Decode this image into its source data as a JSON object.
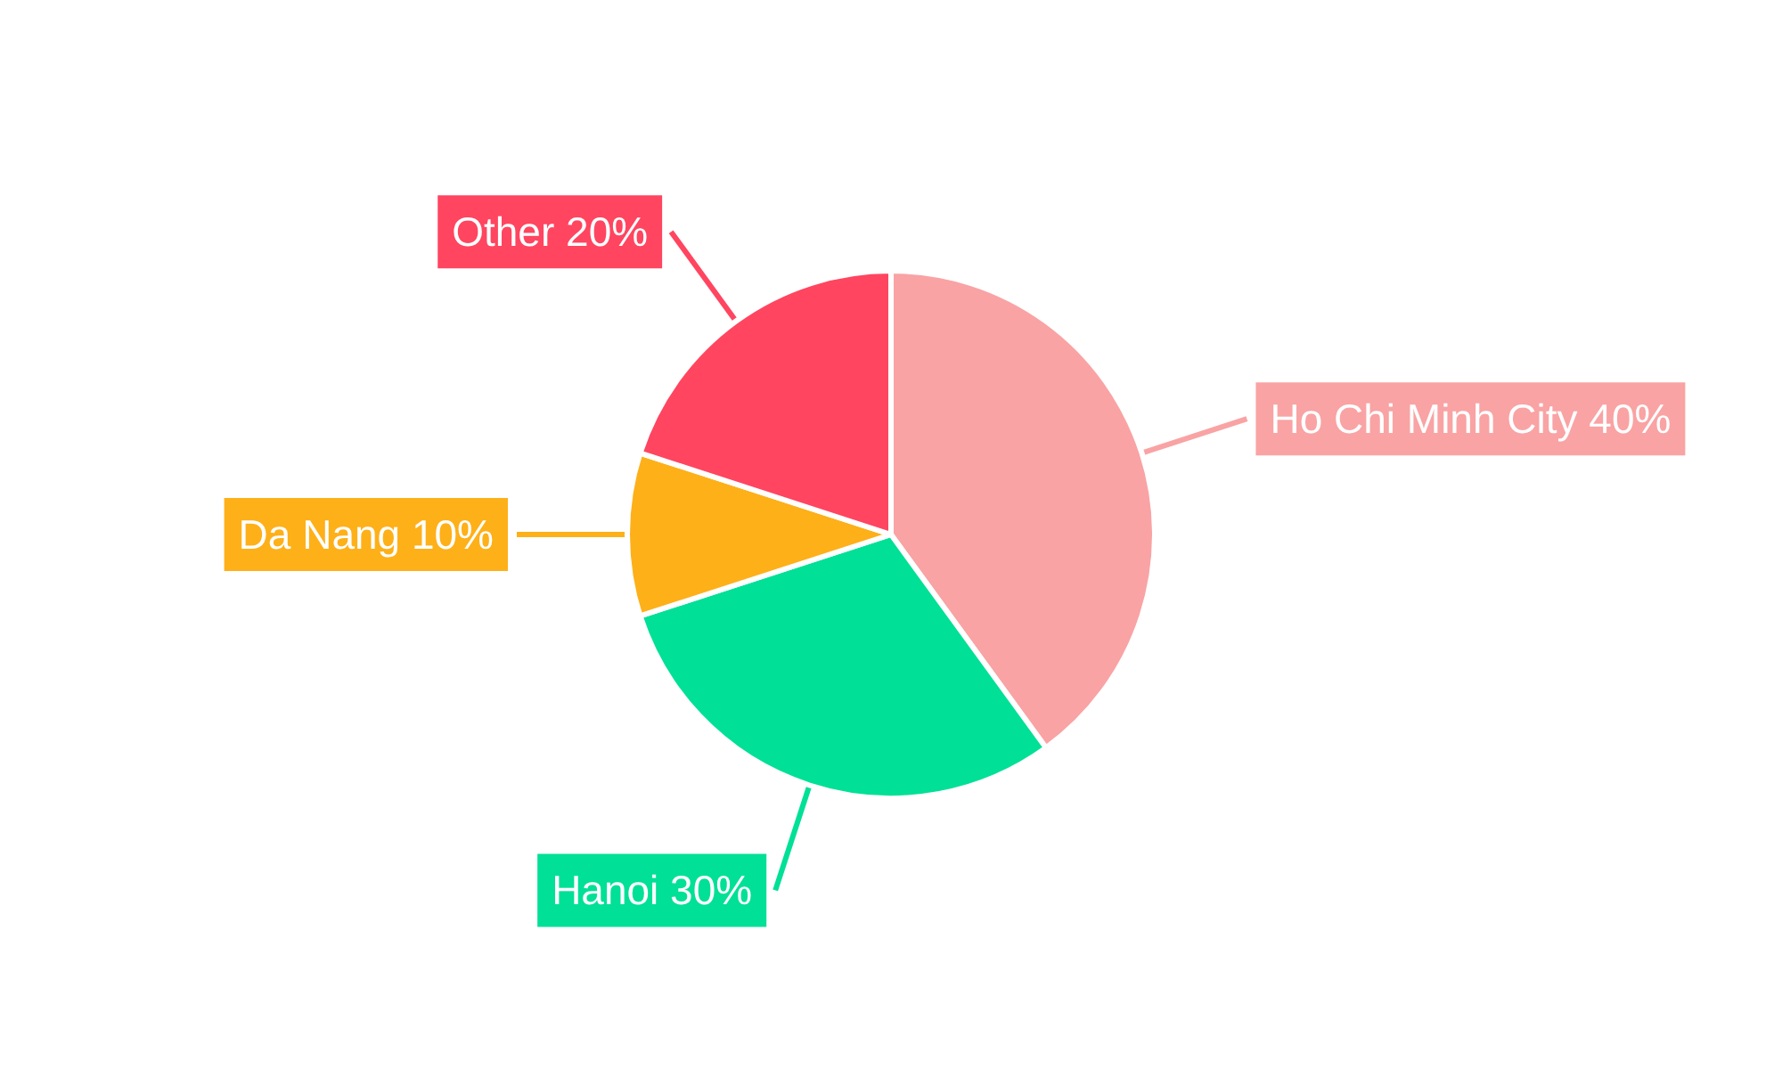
{
  "chart_data": {
    "type": "pie",
    "categories": [
      "Ho Chi Minh City",
      "Hanoi",
      "Da Nang",
      "Other"
    ],
    "values": [
      40,
      30,
      10,
      20
    ],
    "colors": [
      "#f9a3a4",
      "#00e096",
      "#feb019",
      "#ff4560"
    ],
    "value_labels": [
      "40%",
      "30%",
      "10%",
      "20%"
    ]
  }
}
